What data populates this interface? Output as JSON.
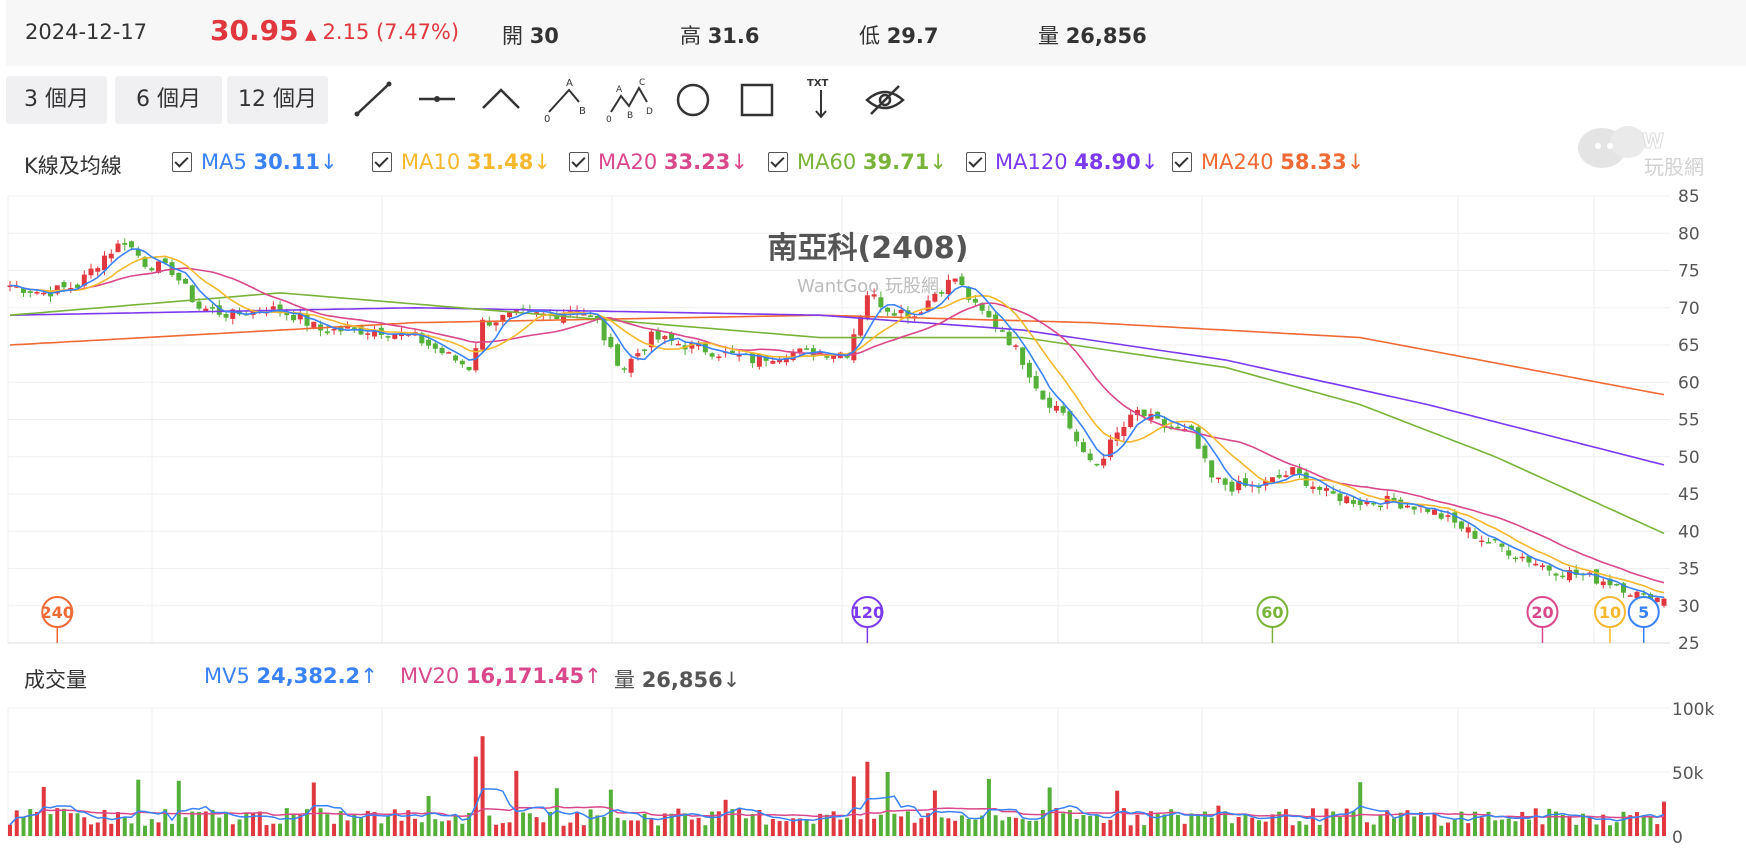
{
  "quote": {
    "date": "2024-12-17",
    "price": "30.95",
    "change": "2.15 (7.47%)",
    "open_label": "開",
    "open": "30",
    "high_label": "高",
    "high": "31.6",
    "low_label": "低",
    "low": "29.7",
    "volume_label": "量",
    "volume": "26,856",
    "up_color": "#e0383e"
  },
  "periods": [
    "3 個月",
    "6 個月",
    "12 個月"
  ],
  "tools": [
    "trend-line-icon",
    "horizontal-line-icon",
    "angle-line-icon",
    "abc-pattern-icon",
    "abcd-pattern-icon",
    "circle-icon",
    "rectangle-icon",
    "text-icon",
    "hide-icon"
  ],
  "watermark": {
    "brand": "玩股網",
    "site": "WantGoo 玩股網"
  },
  "kline_legend": {
    "title": "K線及均線",
    "items": [
      {
        "name": "MA5",
        "value": "30.11",
        "arrow": "↓",
        "color": "#3b82f6"
      },
      {
        "name": "MA10",
        "value": "31.48",
        "arrow": "↓",
        "color": "#f5b82e"
      },
      {
        "name": "MA20",
        "value": "33.23",
        "arrow": "↓",
        "color": "#d9488b"
      },
      {
        "name": "MA60",
        "value": "39.71",
        "arrow": "↓",
        "color": "#7ab33a"
      },
      {
        "name": "MA120",
        "value": "48.90",
        "arrow": "↓",
        "color": "#7c3aed"
      },
      {
        "name": "MA240",
        "value": "58.33",
        "arrow": "↓",
        "color": "#f06a35"
      }
    ]
  },
  "volume_legend": {
    "title": "成交量",
    "mv5_label": "MV5",
    "mv5": "24,382.2",
    "mv5_arrow": "↑",
    "mv5_color": "#3b82f6",
    "mv20_label": "MV20",
    "mv20": "16,171.45",
    "mv20_arrow": "↑",
    "mv20_color": "#d9488b",
    "vol_label": "量",
    "vol": "26,856",
    "vol_arrow": "↓"
  },
  "markers": [
    {
      "label": "240",
      "color": "#f06a35",
      "index": 7
    },
    {
      "label": "120",
      "color": "#7c3aed",
      "index": 127
    },
    {
      "label": "60",
      "color": "#7ab33a",
      "index": 187
    },
    {
      "label": "20",
      "color": "#d9488b",
      "index": 227
    },
    {
      "label": "10",
      "color": "#f5b82e",
      "index": 237
    },
    {
      "label": "5",
      "color": "#3b82f6",
      "index": 242
    }
  ],
  "chart_data": {
    "type": "candlestick",
    "title": "南亞科(2408)",
    "price_axis": {
      "min": 25,
      "max": 85,
      "ticks": [
        "85",
        "80",
        "75",
        "70",
        "65",
        "60",
        "55",
        "50",
        "45",
        "40",
        "35",
        "30",
        "25"
      ]
    },
    "volume_axis": {
      "min": 0,
      "max": 100000,
      "ticks": [
        "100k",
        "50k",
        "0"
      ]
    },
    "bars": 246,
    "anchors": [
      [
        0,
        73
      ],
      [
        5,
        72
      ],
      [
        10,
        73
      ],
      [
        14,
        77
      ],
      [
        17,
        79
      ],
      [
        20,
        76
      ],
      [
        24,
        75
      ],
      [
        28,
        70
      ],
      [
        33,
        69
      ],
      [
        38,
        70
      ],
      [
        42,
        69
      ],
      [
        46,
        67
      ],
      [
        50,
        67
      ],
      [
        55,
        67
      ],
      [
        60,
        66
      ],
      [
        64,
        64
      ],
      [
        68,
        62
      ],
      [
        70,
        68
      ],
      [
        75,
        69
      ],
      [
        80,
        69
      ],
      [
        84,
        70
      ],
      [
        87,
        68
      ],
      [
        89,
        64
      ],
      [
        91,
        62
      ],
      [
        95,
        66
      ],
      [
        100,
        65
      ],
      [
        105,
        64
      ],
      [
        110,
        63
      ],
      [
        115,
        64
      ],
      [
        120,
        64
      ],
      [
        124,
        64
      ],
      [
        127,
        72
      ],
      [
        130,
        70
      ],
      [
        134,
        69
      ],
      [
        137,
        72
      ],
      [
        140,
        74
      ],
      [
        143,
        70
      ],
      [
        147,
        67
      ],
      [
        150,
        63
      ],
      [
        153,
        58
      ],
      [
        156,
        56
      ],
      [
        159,
        50
      ],
      [
        161,
        49
      ],
      [
        164,
        53
      ],
      [
        167,
        56
      ],
      [
        171,
        54
      ],
      [
        175,
        53
      ],
      [
        178,
        47
      ],
      [
        181,
        46
      ],
      [
        185,
        46
      ],
      [
        190,
        48
      ],
      [
        195,
        45
      ],
      [
        200,
        44
      ],
      [
        205,
        44
      ],
      [
        210,
        43
      ],
      [
        214,
        41
      ],
      [
        218,
        39
      ],
      [
        223,
        37
      ],
      [
        228,
        35
      ],
      [
        233,
        34
      ],
      [
        238,
        33
      ],
      [
        242,
        31
      ],
      [
        245,
        31
      ]
    ],
    "ma_end": {
      "MA5": 30.11,
      "MA10": 31.48,
      "MA20": 33.23,
      "MA60": 39.71,
      "MA120": 48.9,
      "MA240": 58.33
    }
  }
}
